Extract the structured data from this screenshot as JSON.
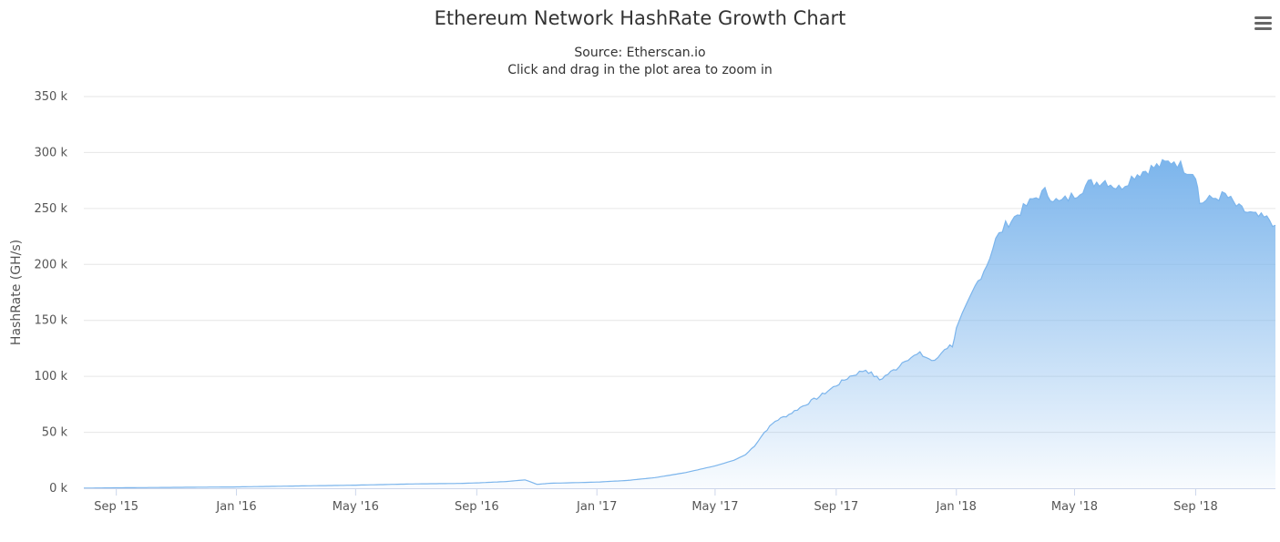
{
  "chart_data": {
    "type": "area",
    "title": "Ethereum Network HashRate Growth Chart",
    "subtitle": "Source: Etherscan.io",
    "subtitle2": "Click and drag in the plot area to zoom in",
    "ylabel": "HashRate (GH/s)",
    "xlabel": "",
    "ylim": [
      0,
      350000
    ],
    "yticks": [
      0,
      50000,
      100000,
      150000,
      200000,
      250000,
      300000,
      350000
    ],
    "ytick_labels": [
      "0 k",
      "50 k",
      "100 k",
      "150 k",
      "200 k",
      "250 k",
      "300 k",
      "350 k"
    ],
    "xlim": [
      "2015-07-30",
      "2018-11-21"
    ],
    "xticks": [
      "2015-09-01",
      "2016-01-01",
      "2016-05-01",
      "2016-09-01",
      "2017-01-01",
      "2017-05-01",
      "2017-09-01",
      "2018-01-01",
      "2018-05-01",
      "2018-09-01"
    ],
    "xtick_labels": [
      "Sep '15",
      "Jan '16",
      "May '16",
      "Sep '16",
      "Jan '17",
      "May '17",
      "Sep '17",
      "Jan '18",
      "May '18",
      "Sep '18"
    ],
    "grid": true,
    "legend": false,
    "series": [
      {
        "name": "HashRate",
        "color": "#7cb5ec",
        "points": [
          [
            "2015-07-30",
            100
          ],
          [
            "2015-09-01",
            400
          ],
          [
            "2015-11-01",
            800
          ],
          [
            "2016-01-01",
            1200
          ],
          [
            "2016-03-01",
            2000
          ],
          [
            "2016-05-01",
            2800
          ],
          [
            "2016-07-01",
            3900
          ],
          [
            "2016-08-15",
            4300
          ],
          [
            "2016-09-01",
            4800
          ],
          [
            "2016-10-01",
            6000
          ],
          [
            "2016-10-20",
            7500
          ],
          [
            "2016-10-28",
            5000
          ],
          [
            "2016-11-01",
            3500
          ],
          [
            "2016-11-15",
            4500
          ],
          [
            "2016-12-01",
            4800
          ],
          [
            "2017-01-01",
            5500
          ],
          [
            "2017-02-01",
            7000
          ],
          [
            "2017-03-01",
            9500
          ],
          [
            "2017-04-01",
            14000
          ],
          [
            "2017-05-01",
            20000
          ],
          [
            "2017-05-20",
            25000
          ],
          [
            "2017-06-01",
            30000
          ],
          [
            "2017-06-10",
            38000
          ],
          [
            "2017-06-20",
            50000
          ],
          [
            "2017-07-01",
            60000
          ],
          [
            "2017-07-15",
            66000
          ],
          [
            "2017-08-01",
            75000
          ],
          [
            "2017-08-15",
            82000
          ],
          [
            "2017-09-01",
            92000
          ],
          [
            "2017-09-15",
            100000
          ],
          [
            "2017-10-01",
            106000
          ],
          [
            "2017-10-15",
            97000
          ],
          [
            "2017-11-01",
            107000
          ],
          [
            "2017-11-10",
            115000
          ],
          [
            "2017-11-25",
            120000
          ],
          [
            "2017-12-10",
            113000
          ],
          [
            "2017-12-20",
            125000
          ],
          [
            "2017-12-28",
            128000
          ],
          [
            "2018-01-01",
            142000
          ],
          [
            "2018-01-10",
            160000
          ],
          [
            "2018-01-20",
            180000
          ],
          [
            "2018-02-01",
            200000
          ],
          [
            "2018-02-10",
            222000
          ],
          [
            "2018-02-20",
            235000
          ],
          [
            "2018-03-01",
            242000
          ],
          [
            "2018-03-10",
            250000
          ],
          [
            "2018-03-20",
            258000
          ],
          [
            "2018-04-01",
            265000
          ],
          [
            "2018-04-15",
            255000
          ],
          [
            "2018-05-01",
            262000
          ],
          [
            "2018-05-15",
            272000
          ],
          [
            "2018-06-01",
            275000
          ],
          [
            "2018-06-15",
            268000
          ],
          [
            "2018-07-01",
            280000
          ],
          [
            "2018-07-15",
            285000
          ],
          [
            "2018-08-01",
            290000
          ],
          [
            "2018-08-10",
            293000
          ],
          [
            "2018-08-20",
            286000
          ],
          [
            "2018-09-01",
            281000
          ],
          [
            "2018-09-05",
            255000
          ],
          [
            "2018-09-15",
            258000
          ],
          [
            "2018-10-01",
            262000
          ],
          [
            "2018-10-15",
            250000
          ],
          [
            "2018-11-01",
            243000
          ],
          [
            "2018-11-15",
            240000
          ],
          [
            "2018-11-21",
            235000
          ]
        ]
      }
    ]
  },
  "menu_icon": "hamburger-menu-icon"
}
